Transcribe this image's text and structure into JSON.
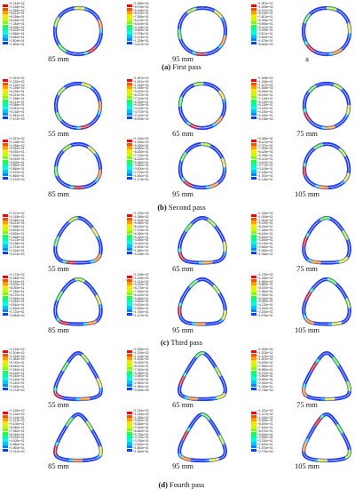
{
  "colors": [
    "#0000ff",
    "#0044ff",
    "#0088ff",
    "#00c8ff",
    "#00ffe4",
    "#00ff99",
    "#20ff40",
    "#80ff00",
    "#c8ff00",
    "#ffe400",
    "#ffa000",
    "#ff5000",
    "#ff0000"
  ],
  "ring_colors": [
    "#0a8cff",
    "#10d0ff",
    "#20e89a",
    "#60f040",
    "#a8f020",
    "#e8e820",
    "#ff9010",
    "#e02020"
  ],
  "rows": [
    {
      "caption": {
        "tag": "(a)",
        "text": "First pass"
      },
      "panels": [
        {
          "label": "85 mm",
          "shape": "circle",
          "ticks": [
            "+1.244e+02",
            "+1.156e+02",
            "+1.069e+02",
            "+9.812e+01",
            "+8.936e+01",
            "+8.060e+01",
            "+7.184e+01",
            "+6.308e+01",
            "+5.432e+01",
            "+4.556e+01",
            "+3.680e+01",
            "+2.804e+01",
            "+1.893e+01"
          ]
        },
        {
          "label": "95 mm",
          "shape": "circle",
          "ticks": [
            "+1.085e+02",
            "+9.976e+01",
            "+9.105e+01",
            "+8.229e+01",
            "+7.354e+01",
            "+6.479e+01",
            "+5.604e+01",
            "+4.729e+01",
            "+3.853e+01",
            "+2.978e+01",
            "+2.103e+01",
            "+1.228e+01",
            "+3.527e+00"
          ]
        },
        {
          "label": "a",
          "shape": "circle",
          "ticks": [
            "+1.087e+02",
            "+1.005e+02",
            "+9.237e+01",
            "+8.419e+01",
            "+7.601e+01",
            "+6.783e+01",
            "+5.965e+01",
            "+5.147e+01",
            "+4.329e+01",
            "+3.511e+01",
            "+2.693e+01",
            "+1.875e+01",
            "+8.464e+00"
          ]
        }
      ]
    },
    {
      "caption": {
        "tag": "(b)",
        "text": "Second pass"
      },
      "panels": [
        {
          "label": "55 mm",
          "shape": "tri-soft",
          "ticks": [
            "+1.337e+02",
            "+1.233e+02",
            "+1.130e+02",
            "+1.026e+02",
            "+9.226e+01",
            "+8.191e+01",
            "+7.156e+01",
            "+6.121e+01",
            "+5.086e+01",
            "+4.051e+01",
            "+3.016e+01",
            "+1.981e+01",
            "+7.472e+00"
          ]
        },
        {
          "label": "65 mm",
          "shape": "tri-soft",
          "ticks": [
            "+1.367e+02",
            "+1.261e+02",
            "+1.155e+02",
            "+1.049e+02",
            "+9.432e+01",
            "+8.372e+01",
            "+7.312e+01",
            "+6.252e+01",
            "+5.192e+01",
            "+4.132e+01",
            "+3.072e+01",
            "+2.012e+01",
            "+8.993e+00"
          ]
        },
        {
          "label": "75 mm",
          "shape": "tri-soft",
          "ticks": [
            "+1.305e+02",
            "+1.206e+02",
            "+1.107e+02",
            "+1.008e+02",
            "+9.090e+01",
            "+8.100e+01",
            "+7.110e+01",
            "+6.120e+01",
            "+5.130e+01",
            "+4.140e+01",
            "+3.150e+01",
            "+2.160e+01",
            "+5.136e+00"
          ]
        }
      ]
    },
    {
      "caption": null,
      "panels": [
        {
          "label": "85 mm",
          "shape": "tri-round",
          "ticks": [
            "+1.297e+02",
            "+1.196e+02",
            "+1.095e+02",
            "+9.940e+01",
            "+8.930e+01",
            "+7.920e+01",
            "+6.910e+01",
            "+5.900e+01",
            "+4.890e+01",
            "+3.880e+01",
            "+2.870e+01",
            "+1.860e+01",
            "+7.472e+00"
          ]
        },
        {
          "label": "95 mm",
          "shape": "tri-round",
          "ticks": [
            "+1.152e+02",
            "+1.064e+02",
            "+9.760e+01",
            "+8.880e+01",
            "+8.000e+01",
            "+7.120e+01",
            "+6.240e+01",
            "+5.360e+01",
            "+4.480e+01",
            "+3.600e+01",
            "+2.720e+01",
            "+1.840e+01",
            "+1.173e+01"
          ]
        },
        {
          "label": "105 mm",
          "shape": "tri-round",
          "ticks": [
            "+9.085e+01",
            "+8.421e+01",
            "+7.757e+01",
            "+7.093e+01",
            "+6.429e+01",
            "+5.765e+01",
            "+5.101e+01",
            "+4.437e+01",
            "+3.773e+01",
            "+3.109e+01",
            "+2.445e+01",
            "+1.781e+01",
            "+1.119e+01"
          ]
        }
      ]
    },
    {
      "caption": {
        "tag": "(c)",
        "text": "Third pass"
      },
      "panels": [
        {
          "label": "55 mm",
          "shape": "tri-mid",
          "ticks": [
            "+1.101e+02",
            "+1.015e+02",
            "+9.285e+01",
            "+8.421e+01",
            "+7.558e+01",
            "+6.694e+01",
            "+5.830e+01",
            "+4.966e+01",
            "+4.102e+01",
            "+3.238e+01",
            "+2.374e+01",
            "+1.510e+01",
            "+9.201e+00"
          ]
        },
        {
          "label": "65 mm",
          "shape": "tri-mid",
          "ticks": [
            "+1.190e+02",
            "+1.096e+02",
            "+1.002e+02",
            "+9.080e+01",
            "+8.140e+01",
            "+7.200e+01",
            "+6.260e+01",
            "+5.320e+01",
            "+4.380e+01",
            "+3.440e+01",
            "+2.500e+01",
            "+1.560e+01",
            "+9.235e+00"
          ]
        },
        {
          "label": "75 mm",
          "shape": "tri-mid",
          "ticks": [
            "+1.184e+02",
            "+1.094e+02",
            "+1.004e+02",
            "+9.140e+01",
            "+8.240e+01",
            "+7.340e+01",
            "+6.440e+01",
            "+5.540e+01",
            "+4.640e+01",
            "+3.740e+01",
            "+2.840e+01",
            "+1.940e+01",
            "+1.056e+01"
          ]
        }
      ]
    },
    {
      "caption": null,
      "panels": [
        {
          "label": "85 mm",
          "shape": "tri-mid",
          "ticks": [
            "+1.173e+02",
            "+1.082e+02",
            "+9.910e+01",
            "+9.000e+01",
            "+8.090e+01",
            "+7.180e+01",
            "+6.270e+01",
            "+5.360e+01",
            "+4.450e+01",
            "+3.540e+01",
            "+2.630e+01",
            "+1.720e+01",
            "+3.383e+00"
          ]
        },
        {
          "label": "95 mm",
          "shape": "tri-mid",
          "ticks": [
            "+1.199e+02",
            "+1.106e+02",
            "+1.013e+02",
            "+9.200e+01",
            "+8.270e+01",
            "+7.340e+01",
            "+6.410e+01",
            "+5.480e+01",
            "+4.550e+01",
            "+3.620e+01",
            "+2.690e+01",
            "+1.760e+01",
            "+1.107e+01"
          ]
        },
        {
          "label": "105 mm",
          "shape": "tri-mid",
          "ticks": [
            "+1.276e+02",
            "+1.180e+02",
            "+1.084e+02",
            "+9.880e+01",
            "+8.920e+01",
            "+7.960e+01",
            "+7.000e+01",
            "+6.040e+01",
            "+5.080e+01",
            "+4.120e+01",
            "+3.160e+01",
            "+2.200e+01",
            "+1.978e+01"
          ]
        }
      ]
    },
    {
      "caption": {
        "tag": "(d)",
        "text": "Fourth pass"
      },
      "panels": [
        {
          "label": "55 mm",
          "shape": "tri-sharp",
          "ticks": [
            "+1.414e+02",
            "+1.304e+02",
            "+1.194e+02",
            "+1.084e+02",
            "+9.740e+01",
            "+8.640e+01",
            "+7.540e+01",
            "+6.440e+01",
            "+5.340e+01",
            "+4.240e+01",
            "+3.140e+01",
            "+2.040e+01",
            "+2.172e+00"
          ]
        },
        {
          "label": "65 mm",
          "shape": "tri-sharp",
          "ticks": [
            "+1.306e+02",
            "+1.205e+02",
            "+1.104e+02",
            "+1.003e+02",
            "+9.020e+01",
            "+8.010e+01",
            "+7.000e+01",
            "+5.990e+01",
            "+4.980e+01",
            "+3.970e+01",
            "+2.960e+01",
            "+1.950e+01",
            "+3.349e+00"
          ]
        },
        {
          "label": "75 mm",
          "shape": "tri-sharp",
          "ticks": [
            "+1.304e+02",
            "+1.203e+02",
            "+1.102e+02",
            "+1.001e+02",
            "+9.000e+01",
            "+7.990e+01",
            "+6.980e+01",
            "+5.970e+01",
            "+4.960e+01",
            "+3.950e+01",
            "+2.940e+01",
            "+1.930e+01",
            "+2.736e+00"
          ]
        }
      ]
    },
    {
      "caption": null,
      "panels": [
        {
          "label": "85 mm",
          "shape": "tri-sharp",
          "ticks": [
            "+1.318e+02",
            "+1.216e+02",
            "+1.114e+02",
            "+1.012e+02",
            "+9.100e+01",
            "+8.080e+01",
            "+7.060e+01",
            "+6.040e+01",
            "+5.020e+01",
            "+4.000e+01",
            "+2.980e+01",
            "+1.960e+01",
            "+2.761e+00"
          ]
        },
        {
          "label": "95 mm",
          "shape": "tri-sharp",
          "ticks": [
            "+1.242e+02",
            "+1.146e+02",
            "+1.050e+02",
            "+9.540e+01",
            "+8.580e+01",
            "+7.620e+01",
            "+6.660e+01",
            "+5.700e+01",
            "+4.740e+01",
            "+3.780e+01",
            "+2.820e+01",
            "+1.860e+01",
            "+1.354e+01"
          ]
        },
        {
          "label": "105 mm",
          "shape": "tri-sharp",
          "ticks": [
            "+1.221e+02",
            "+1.127e+02",
            "+1.033e+02",
            "+9.390e+01",
            "+8.450e+01",
            "+7.510e+01",
            "+6.570e+01",
            "+5.630e+01",
            "+4.690e+01",
            "+3.750e+01",
            "+2.810e+01",
            "+1.870e+01",
            "+2.775e+00"
          ]
        }
      ]
    }
  ]
}
